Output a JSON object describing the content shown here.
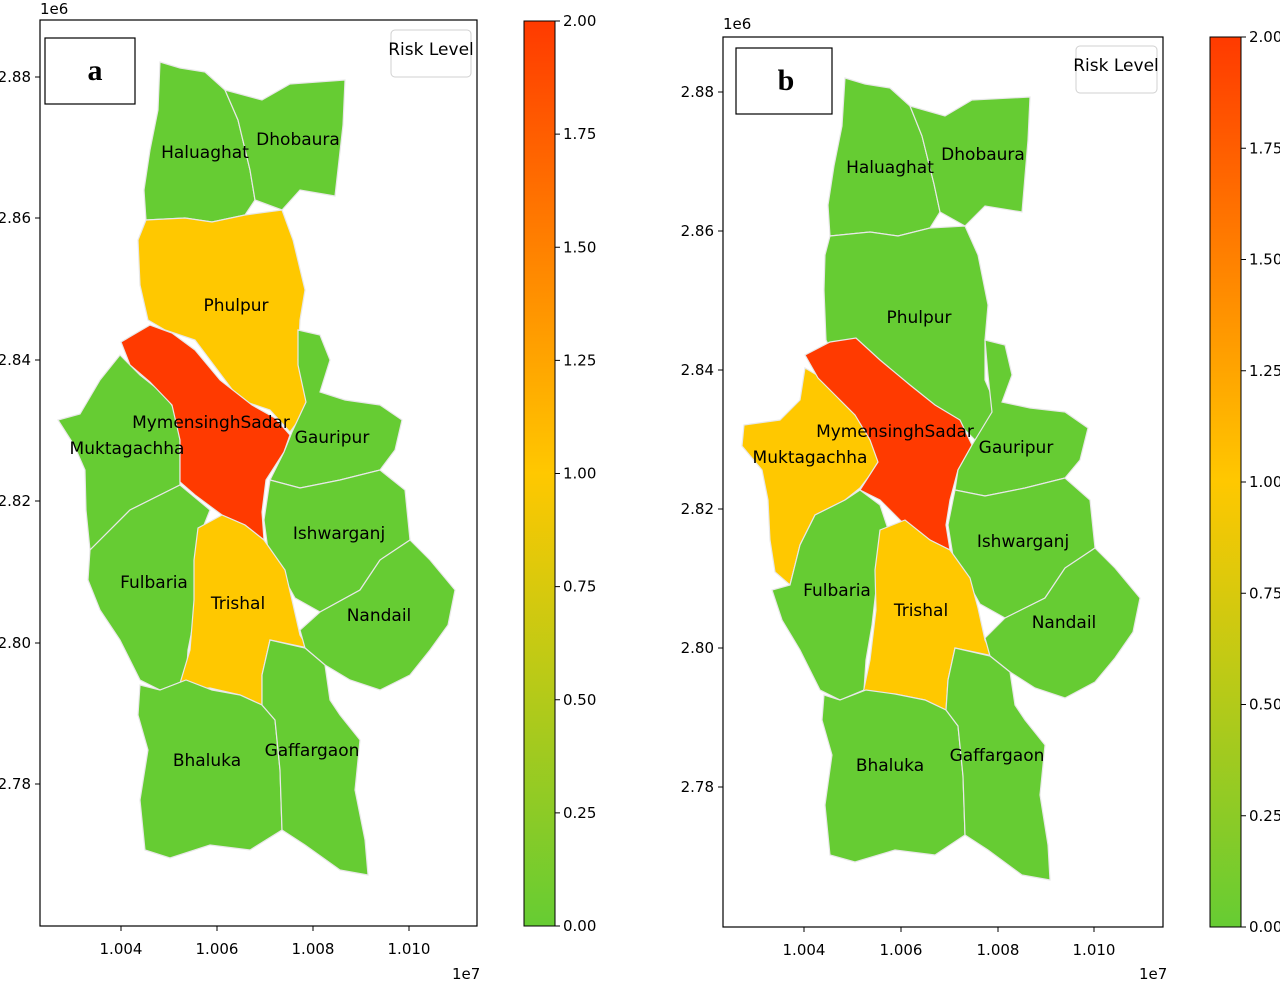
{
  "colors": {
    "low": "#66cc33",
    "mid": "#ffc800",
    "high": "#ff3a00"
  },
  "colorbar": {
    "min": 0,
    "max": 2,
    "ticks": [
      "0.00",
      "0.25",
      "0.50",
      "0.75",
      "1.00",
      "1.25",
      "1.50",
      "1.75",
      "2.00"
    ]
  },
  "axes": {
    "x_ticks": [
      "1.004",
      "1.006",
      "1.008",
      "1.010"
    ],
    "y_ticks": [
      "2.78",
      "2.80",
      "2.82",
      "2.84",
      "2.86",
      "2.88"
    ],
    "x_scale": "1e7",
    "y_scale": "1e6"
  },
  "legend_title": "Risk Level",
  "panels": [
    {
      "letter": "a",
      "districts": [
        {
          "name": "Haluaghat",
          "risk": 0
        },
        {
          "name": "Dhobaura",
          "risk": 0
        },
        {
          "name": "Phulpur",
          "risk": 1
        },
        {
          "name": "MymensinghSadar",
          "risk": 2
        },
        {
          "name": "Muktagachha",
          "risk": 0
        },
        {
          "name": "Gauripur",
          "risk": 0
        },
        {
          "name": "Ishwarganj",
          "risk": 0
        },
        {
          "name": "Fulbaria",
          "risk": 0
        },
        {
          "name": "Trishal",
          "risk": 1
        },
        {
          "name": "Nandail",
          "risk": 0
        },
        {
          "name": "Bhaluka",
          "risk": 0
        },
        {
          "name": "Gaffargaon",
          "risk": 0
        }
      ]
    },
    {
      "letter": "b",
      "districts": [
        {
          "name": "Haluaghat",
          "risk": 0
        },
        {
          "name": "Dhobaura",
          "risk": 0
        },
        {
          "name": "Phulpur",
          "risk": 0
        },
        {
          "name": "MymensinghSadar",
          "risk": 2
        },
        {
          "name": "Muktagachha",
          "risk": 1
        },
        {
          "name": "Gauripur",
          "risk": 0
        },
        {
          "name": "Ishwarganj",
          "risk": 0
        },
        {
          "name": "Fulbaria",
          "risk": 0
        },
        {
          "name": "Trishal",
          "risk": 1
        },
        {
          "name": "Nandail",
          "risk": 0
        },
        {
          "name": "Bhaluka",
          "risk": 0
        },
        {
          "name": "Gaffargaon",
          "risk": 0
        }
      ]
    }
  ]
}
